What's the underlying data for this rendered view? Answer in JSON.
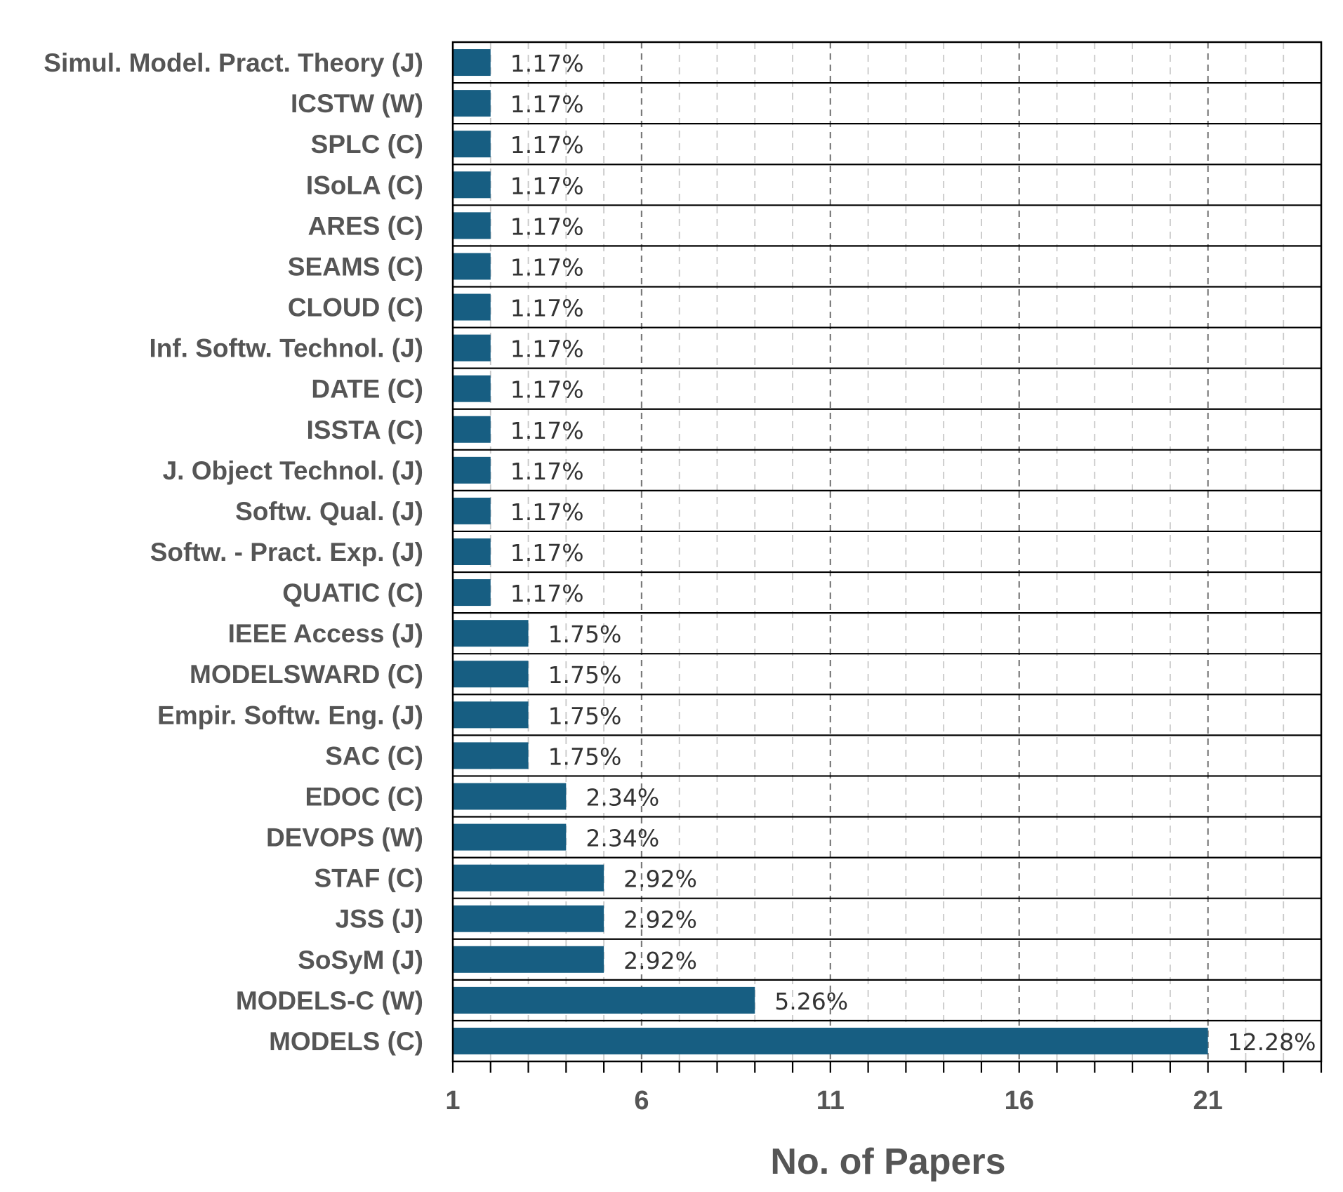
{
  "chart_data": {
    "type": "bar",
    "orientation": "horizontal",
    "categories": [
      "Simul. Model. Pract. Theory (J)",
      "ICSTW (W)",
      "SPLC (C)",
      "ISoLA (C)",
      "ARES (C)",
      "SEAMS (C)",
      "CLOUD (C)",
      "Inf. Softw. Technol. (J)",
      "DATE (C)",
      "ISSTA (C)",
      "J. Object Technol. (J)",
      "Softw. Qual. (J)",
      "Softw. - Pract. Exp. (J)",
      "QUATIC (C)",
      "IEEE Access (J)",
      "MODELSWARD (C)",
      "Empir. Softw. Eng. (J)",
      "SAC (C)",
      "EDOC (C)",
      "DEVOPS (W)",
      "STAF (C)",
      "JSS (J)",
      "SoSyM  (J)",
      "MODELS-C (W)",
      "MODELS (C)"
    ],
    "values": [
      2,
      2,
      2,
      2,
      2,
      2,
      2,
      2,
      2,
      2,
      2,
      2,
      2,
      2,
      3,
      3,
      3,
      3,
      4,
      4,
      5,
      5,
      5,
      9,
      21
    ],
    "data_labels": [
      "1.17%",
      "1.17%",
      "1.17%",
      "1.17%",
      "1.17%",
      "1.17%",
      "1.17%",
      "1.17%",
      "1.17%",
      "1.17%",
      "1.17%",
      "1.17%",
      "1.17%",
      "1.17%",
      "1.75%",
      "1.75%",
      "1.75%",
      "1.75%",
      "2.34%",
      "2.34%",
      "2.92%",
      "2.92%",
      "2.92%",
      "5.26%",
      "12.28%"
    ],
    "xlabel": "No. of Papers",
    "ylabel": "",
    "title": "",
    "xlim": [
      1,
      24
    ],
    "x_ticks": [
      "1",
      "6",
      "11",
      "16",
      "21"
    ],
    "x_major_step": 5,
    "x_minor_step": 1,
    "grid": "vertical dashed",
    "legend": "none",
    "colors": {
      "bar": "#175E82",
      "text": "#555555",
      "data_label": "#333333",
      "major_grid": "#7a7a7a",
      "minor_grid": "#c8c8c8",
      "frame": "#000000"
    }
  }
}
